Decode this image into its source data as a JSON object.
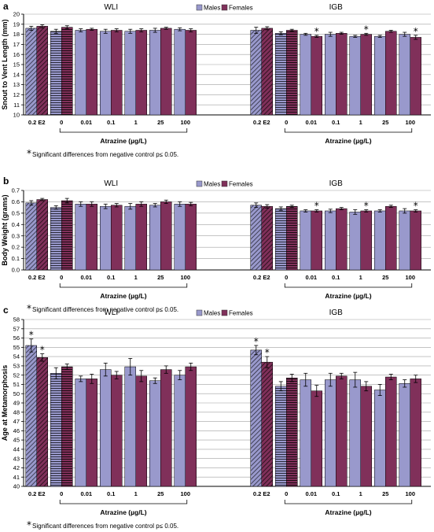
{
  "colors": {
    "males": "#9999cc",
    "females": "#80305a",
    "axis": "#000000",
    "grid": "#a0a0a0",
    "background": "#ffffff"
  },
  "legend": {
    "males": "Males",
    "females": "Females"
  },
  "footnote_star": "*",
  "footnote": "Significant differences from negative control p≤ 0.05.",
  "chart_data": [
    {
      "type": "bar",
      "panel": "a",
      "ylabel": "Snout to Vent Length (mm)",
      "ylim": [
        10,
        20
      ],
      "yticks": [
        10,
        11,
        12,
        13,
        14,
        15,
        16,
        17,
        18,
        19,
        20
      ],
      "grid": true,
      "legend_position": "top-center",
      "groups": [
        {
          "name": "WLI",
          "xlabel": "Atrazine (µg/L)",
          "categories": [
            "0.2 E2",
            "0",
            "0.01",
            "0.1",
            "1",
            "25",
            "100"
          ],
          "series": [
            {
              "name": "Males",
              "values": [
                18.6,
                18.3,
                18.4,
                18.3,
                18.3,
                18.4,
                18.5
              ],
              "errors": [
                0.2,
                0.2,
                0.15,
                0.2,
                0.2,
                0.2,
                0.15
              ]
            },
            {
              "name": "Females",
              "values": [
                18.8,
                18.7,
                18.5,
                18.4,
                18.4,
                18.6,
                18.4
              ],
              "errors": [
                0.15,
                0.15,
                0.1,
                0.15,
                0.15,
                0.1,
                0.15
              ]
            }
          ],
          "significant": []
        },
        {
          "name": "IGB",
          "xlabel": "Atrazine (µg/L)",
          "categories": [
            "0.2 E2",
            "0",
            "0.01",
            "0.1",
            "1",
            "25",
            "100"
          ],
          "series": [
            {
              "name": "Males",
              "values": [
                18.4,
                18.1,
                18.0,
                18.0,
                17.8,
                17.8,
                18.0
              ],
              "errors": [
                0.3,
                0.15,
                0.1,
                0.2,
                0.1,
                0.1,
                0.2
              ]
            },
            {
              "name": "Females",
              "values": [
                18.6,
                18.4,
                17.8,
                18.1,
                18.0,
                18.3,
                17.7
              ],
              "errors": [
                0.15,
                0.1,
                0.1,
                0.1,
                0.1,
                0.1,
                0.2
              ]
            }
          ],
          "significant": [
            [
              2,
              "Females"
            ],
            [
              4,
              "Females"
            ],
            [
              6,
              "Females"
            ]
          ]
        }
      ]
    },
    {
      "type": "bar",
      "panel": "b",
      "ylabel": "Body Weight (grams)",
      "ylim": [
        0,
        0.7
      ],
      "yticks": [
        0,
        0.1,
        0.2,
        0.3,
        0.4,
        0.5,
        0.6,
        0.7
      ],
      "grid": true,
      "legend_position": "top-center",
      "groups": [
        {
          "name": "WLI",
          "xlabel": "Atrazine (µg/L)",
          "categories": [
            "0.2 E2",
            "0",
            "0.01",
            "0.1",
            "1",
            "25",
            "100"
          ],
          "series": [
            {
              "name": "Males",
              "values": [
                0.59,
                0.55,
                0.58,
                0.56,
                0.56,
                0.57,
                0.58
              ],
              "errors": [
                0.02,
                0.015,
                0.02,
                0.02,
                0.025,
                0.015,
                0.02
              ]
            },
            {
              "name": "Females",
              "values": [
                0.62,
                0.61,
                0.58,
                0.57,
                0.58,
                0.6,
                0.58
              ],
              "errors": [
                0.01,
                0.02,
                0.02,
                0.015,
                0.02,
                0.015,
                0.015
              ]
            }
          ],
          "significant": []
        },
        {
          "name": "IGB",
          "xlabel": "Atrazine (µg/L)",
          "categories": [
            "0.2 E2",
            "0",
            "0.01",
            "0.1",
            "1",
            "25",
            "100"
          ],
          "series": [
            {
              "name": "Males",
              "values": [
                0.57,
                0.54,
                0.52,
                0.52,
                0.51,
                0.52,
                0.52
              ],
              "errors": [
                0.02,
                0.015,
                0.01,
                0.015,
                0.02,
                0.01,
                0.02
              ]
            },
            {
              "name": "Females",
              "values": [
                0.56,
                0.56,
                0.52,
                0.54,
                0.52,
                0.56,
                0.52
              ],
              "errors": [
                0.015,
                0.01,
                0.01,
                0.01,
                0.01,
                0.01,
                0.01
              ]
            }
          ],
          "significant": [
            [
              2,
              "Females"
            ],
            [
              4,
              "Females"
            ],
            [
              6,
              "Females"
            ]
          ]
        }
      ]
    },
    {
      "type": "bar",
      "panel": "c",
      "ylabel": "Age at Metamorphosis",
      "ylim": [
        40,
        58
      ],
      "yticks": [
        40,
        41,
        42,
        43,
        44,
        45,
        46,
        47,
        48,
        49,
        50,
        51,
        52,
        53,
        54,
        55,
        56,
        57,
        58
      ],
      "grid": true,
      "legend_position": "top-center",
      "groups": [
        {
          "name": "WLI",
          "xlabel": "Atrazine (µg/L)",
          "categories": [
            "0.2 E2",
            "0",
            "0.01",
            "0.1",
            "1",
            "25",
            "100"
          ],
          "series": [
            {
              "name": "Males",
              "values": [
                55.2,
                52.2,
                51.6,
                52.6,
                52.9,
                51.4,
                52.0
              ],
              "errors": [
                0.7,
                0.6,
                0.3,
                0.7,
                0.9,
                0.3,
                0.5
              ]
            },
            {
              "name": "Females",
              "values": [
                53.9,
                52.9,
                51.6,
                52.0,
                51.9,
                52.6,
                52.9
              ],
              "errors": [
                0.4,
                0.3,
                0.5,
                0.4,
                0.6,
                0.4,
                0.4
              ]
            }
          ],
          "significant": [
            [
              0,
              "Males"
            ],
            [
              0,
              "Females"
            ]
          ]
        },
        {
          "name": "IGB",
          "xlabel": "Atrazine (µg/L)",
          "categories": [
            "0.2 E2",
            "0",
            "0.01",
            "0.1",
            "1",
            "25",
            "100"
          ],
          "series": [
            {
              "name": "Males",
              "values": [
                54.7,
                50.8,
                51.5,
                51.5,
                51.5,
                50.4,
                51.1
              ],
              "errors": [
                0.5,
                0.5,
                0.7,
                0.7,
                0.8,
                0.6,
                0.4
              ]
            },
            {
              "name": "Females",
              "values": [
                53.4,
                51.7,
                50.3,
                51.9,
                50.8,
                51.8,
                51.6
              ],
              "errors": [
                0.6,
                0.4,
                0.6,
                0.3,
                0.5,
                0.3,
                0.4
              ]
            }
          ],
          "significant": [
            [
              0,
              "Males"
            ],
            [
              0,
              "Females"
            ]
          ]
        }
      ]
    }
  ]
}
